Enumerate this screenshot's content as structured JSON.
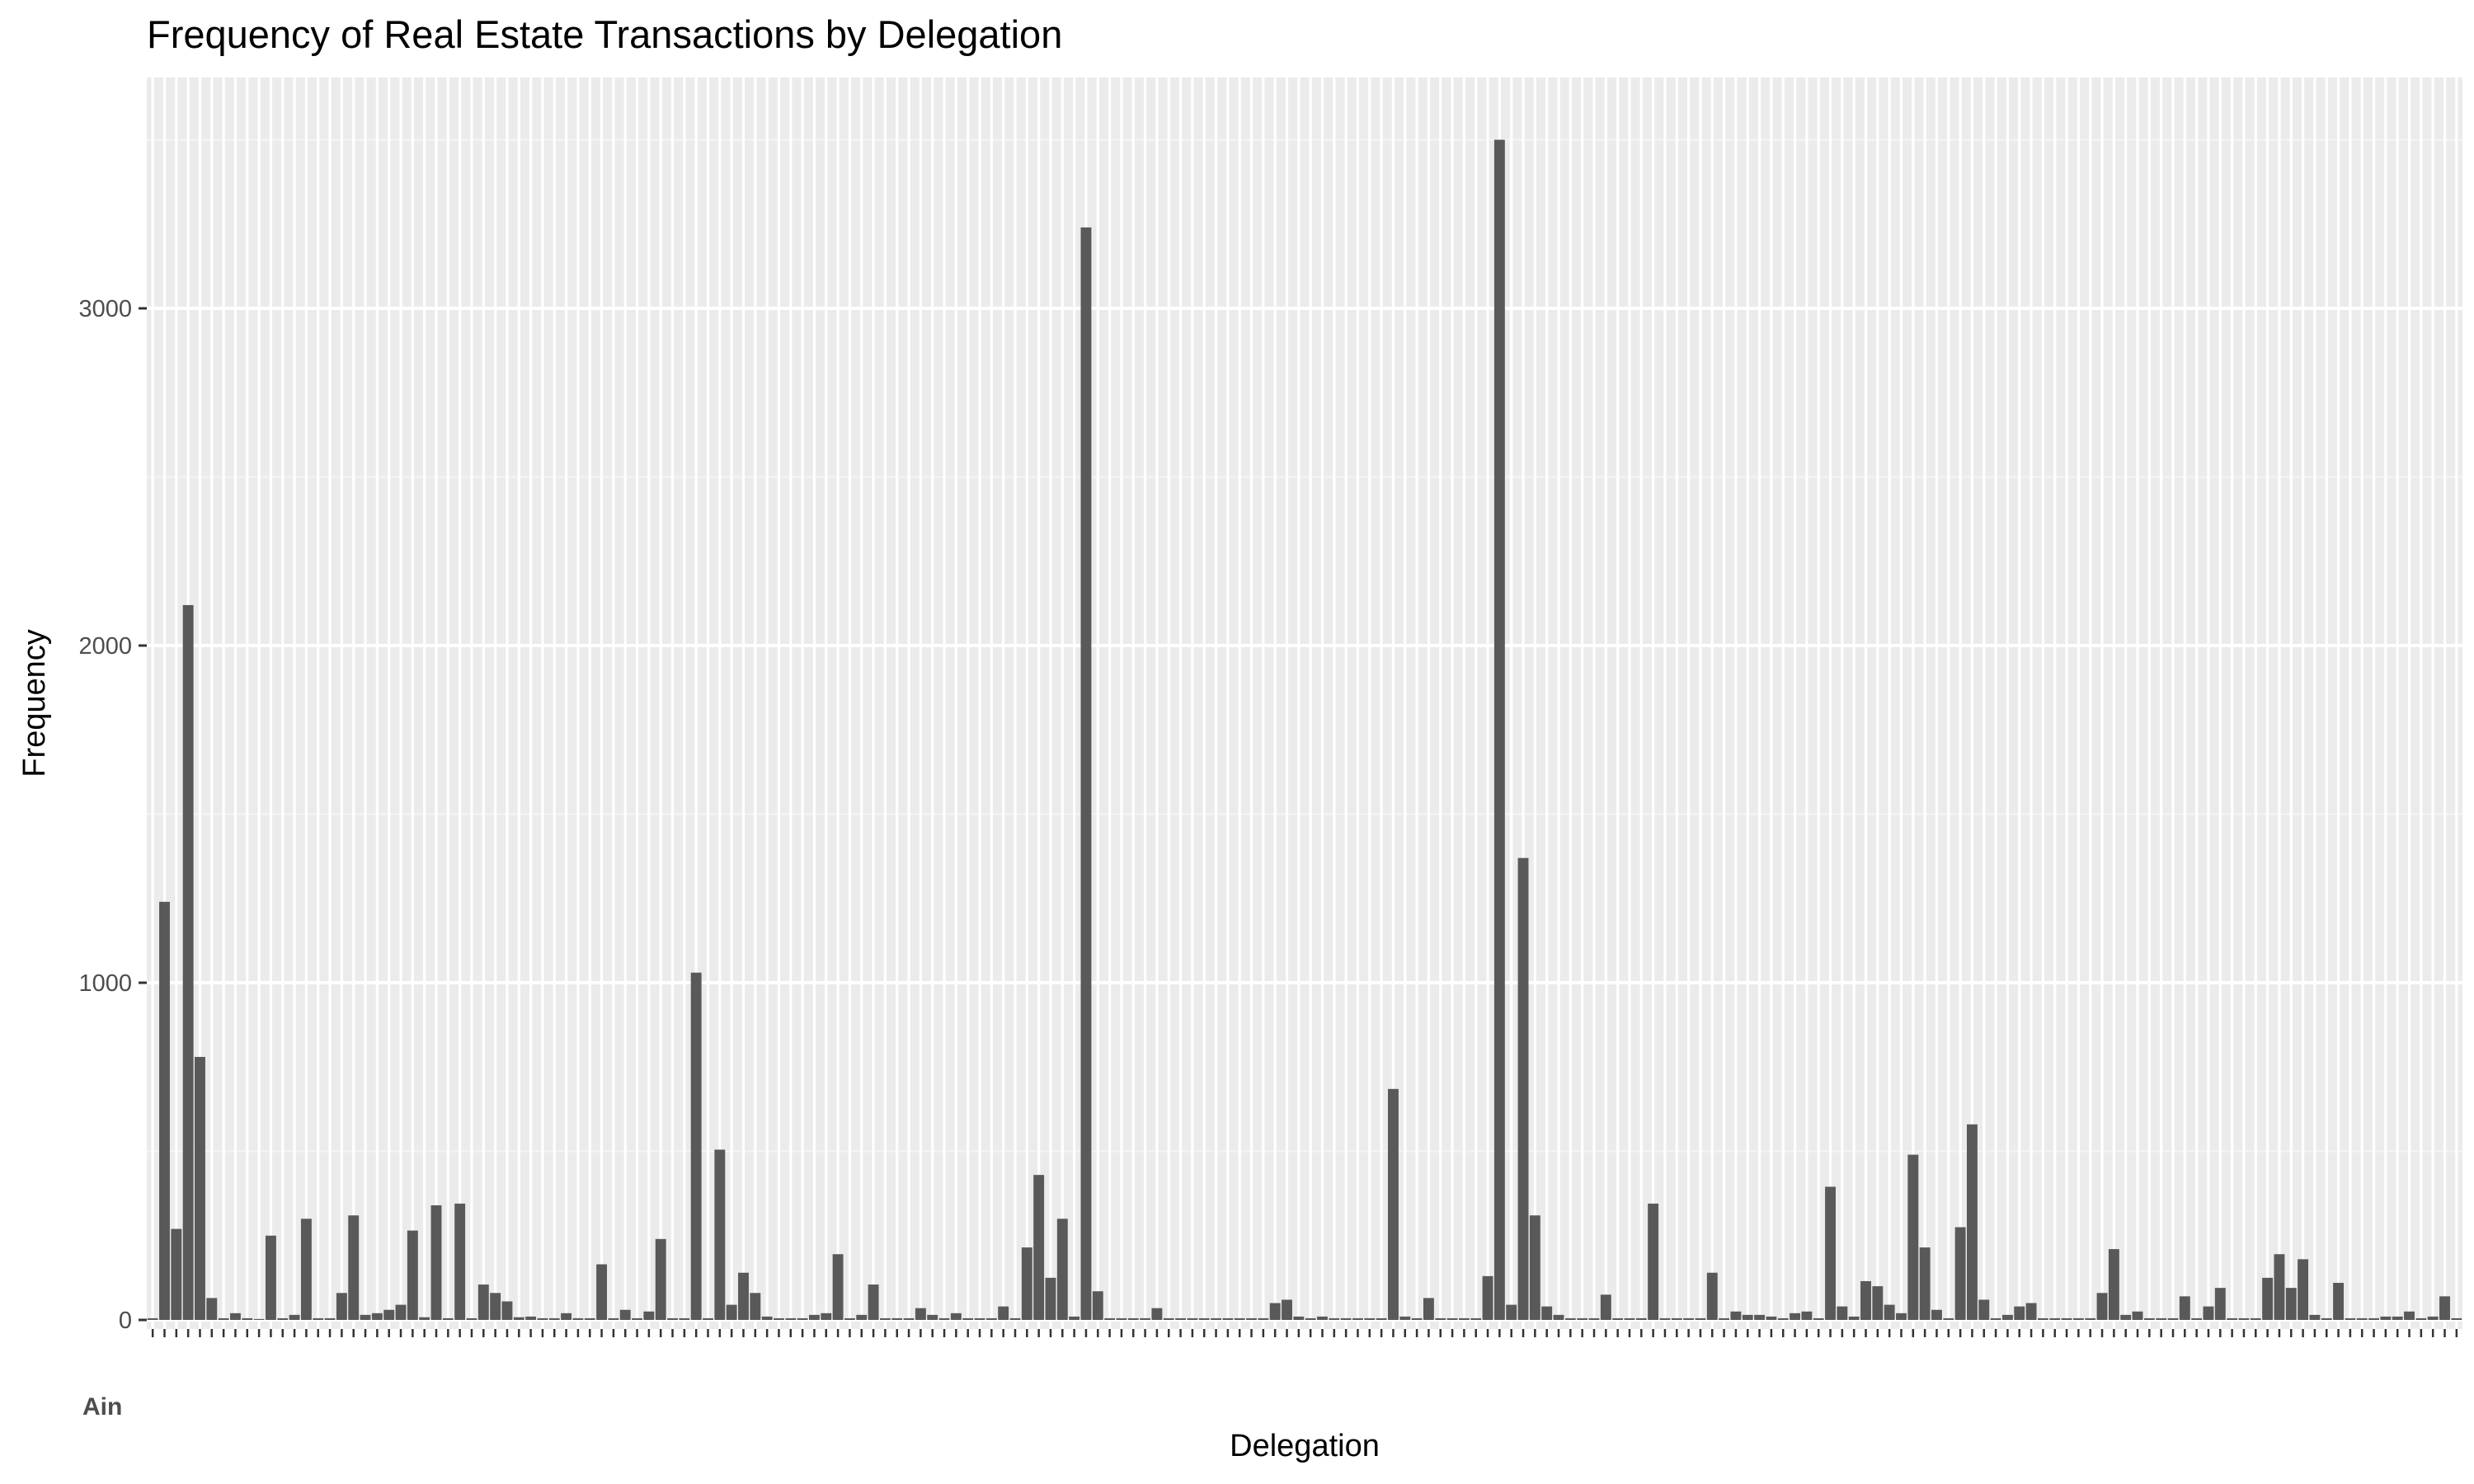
{
  "chart_data": {
    "type": "bar",
    "title": "Frequency of Real Estate Transactions by Delegation",
    "xlabel": "Delegation",
    "ylabel": "Frequency",
    "ylim": [
      0,
      3680
    ],
    "yticks": [
      0,
      1000,
      2000,
      3000
    ],
    "grid": true,
    "category_tick_labels_legible": false,
    "category_tick_labels_fragment": "Ain",
    "values": [
      5,
      1240,
      270,
      2120,
      780,
      65,
      5,
      20,
      5,
      3,
      250,
      5,
      15,
      300,
      5,
      5,
      80,
      310,
      15,
      20,
      30,
      45,
      265,
      8,
      340,
      5,
      345,
      5,
      105,
      80,
      55,
      8,
      10,
      5,
      5,
      20,
      5,
      5,
      165,
      5,
      30,
      5,
      25,
      240,
      5,
      5,
      1030,
      5,
      505,
      45,
      140,
      80,
      10,
      5,
      5,
      5,
      15,
      20,
      195,
      5,
      15,
      105,
      5,
      5,
      5,
      35,
      15,
      5,
      20,
      5,
      5,
      5,
      40,
      5,
      215,
      430,
      125,
      300,
      10,
      3240,
      85,
      5,
      5,
      5,
      5,
      35,
      5,
      5,
      5,
      5,
      5,
      5,
      5,
      5,
      5,
      50,
      60,
      10,
      5,
      10,
      5,
      5,
      5,
      5,
      5,
      685,
      10,
      5,
      65,
      5,
      5,
      5,
      5,
      130,
      3500,
      45,
      1370,
      310,
      40,
      15,
      5,
      5,
      5,
      75,
      5,
      5,
      5,
      345,
      5,
      5,
      5,
      5,
      140,
      5,
      25,
      15,
      15,
      10,
      5,
      20,
      25,
      5,
      395,
      40,
      10,
      115,
      100,
      45,
      20,
      490,
      215,
      30,
      5,
      275,
      580,
      60,
      5,
      15,
      40,
      50,
      5,
      5,
      5,
      5,
      5,
      80,
      210,
      15,
      25,
      5,
      5,
      5,
      70,
      5,
      40,
      95,
      5,
      5,
      5,
      125,
      195,
      95,
      180,
      15,
      5,
      110,
      5,
      5,
      5,
      10,
      10,
      25,
      5,
      10,
      70,
      5
    ]
  }
}
